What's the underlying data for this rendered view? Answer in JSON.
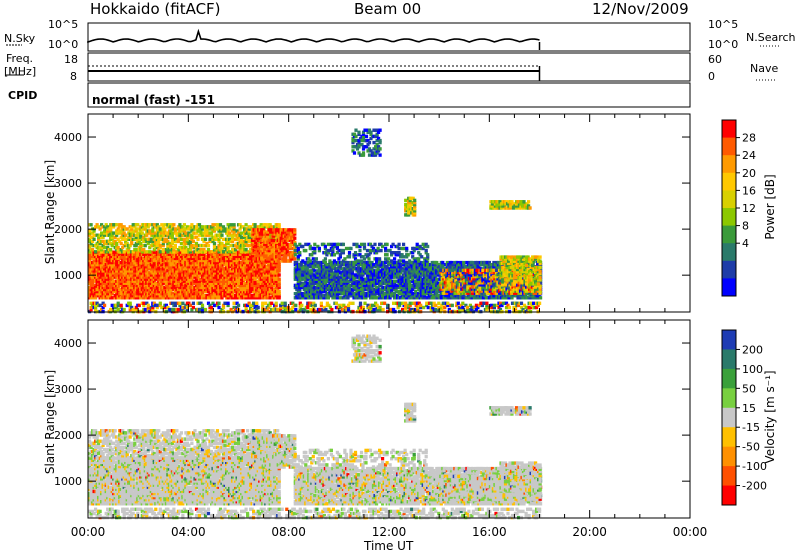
{
  "header": {
    "radar": "Hokkaido (fitACF)",
    "beam": "Beam 00",
    "date": "12/Nov/2009"
  },
  "panels": {
    "nsky_label": "N.Sky",
    "nsky_ticks": [
      "10^5",
      "10^0"
    ],
    "nsearch_label": "N.Search",
    "nsearch_ticks": [
      "10^5",
      "10^0"
    ],
    "freq_label": "Freq.",
    "freq_unit": "[MHz]",
    "freq_ticks": [
      "18",
      "8"
    ],
    "nave_label": "Nave",
    "nave_ticks": [
      "60",
      "0"
    ],
    "cpid_label": "CPID",
    "cpid_value": "normal (fast) -151"
  },
  "chart_data": [
    {
      "type": "heatmap",
      "parameter": "Power",
      "ylabel": "Slant Range [km]",
      "xlabel": "",
      "ylim": [
        200,
        4500
      ],
      "xlim_hours": [
        0,
        24
      ],
      "yticks": [
        "1000",
        "2000",
        "3000",
        "4000"
      ],
      "colorbar": {
        "label": "Power [dB]",
        "ticks": [
          "28",
          "24",
          "20",
          "16",
          "12",
          "8",
          "4"
        ],
        "colors": [
          "#ff0000",
          "#ff5a00",
          "#ff9a00",
          "#ffc800",
          "#d8d000",
          "#8cc800",
          "#3a9a3a",
          "#2a7a6a",
          "#1e3ca8",
          "#0000ff"
        ]
      }
    },
    {
      "type": "heatmap",
      "parameter": "Velocity",
      "ylabel": "Slant Range [km]",
      "xlabel": "Time UT",
      "ylim": [
        200,
        4500
      ],
      "xlim_hours": [
        0,
        24
      ],
      "yticks": [
        "1000",
        "2000",
        "3000",
        "4000"
      ],
      "xticks": [
        "00:00",
        "04:00",
        "08:00",
        "12:00",
        "16:00",
        "20:00",
        "00:00"
      ],
      "colorbar": {
        "label": "Velocity [m s⁻¹]",
        "ticks": [
          "200",
          "100",
          "50",
          "15",
          "-15",
          "-50",
          "-100",
          "-200"
        ],
        "colors": [
          "#1e3cb4",
          "#2a7a6a",
          "#3aa03a",
          "#78d040",
          "#c8c8c8",
          "#ffc000",
          "#ff9000",
          "#ff5000",
          "#ff0000"
        ]
      }
    }
  ]
}
